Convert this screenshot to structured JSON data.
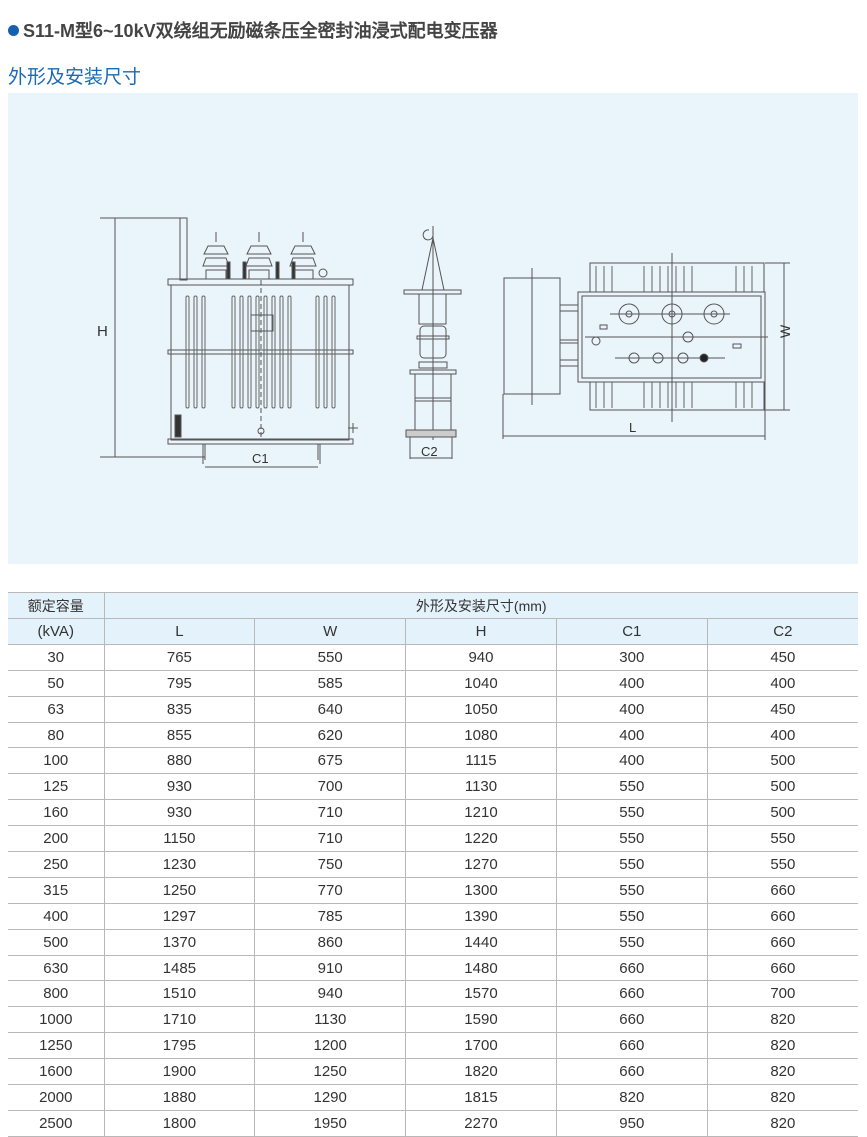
{
  "header": {
    "title": "S11-M型6~10kV双绕组无励磁条压全密封油浸式配电变压器",
    "bullet_color": "#1560b0",
    "section_title": "外形及安装尺寸",
    "section_color": "#1a6bb5"
  },
  "drawing": {
    "background": "#eaf4fb",
    "labels": {
      "H": "H",
      "C1": "C1",
      "C2": "C2",
      "L": "L",
      "W": "W"
    }
  },
  "table": {
    "capacity_header_line1": "额定容量",
    "capacity_header_line2": "(kVA)",
    "group_header": "外形及安装尺寸(mm)",
    "columns": [
      "L",
      "W",
      "H",
      "C1",
      "C2"
    ],
    "rows": [
      [
        "30",
        "765",
        "550",
        "940",
        "300",
        "450"
      ],
      [
        "50",
        "795",
        "585",
        "1040",
        "400",
        "400"
      ],
      [
        "63",
        "835",
        "640",
        "1050",
        "400",
        "450"
      ],
      [
        "80",
        "855",
        "620",
        "1080",
        "400",
        "400"
      ],
      [
        "100",
        "880",
        "675",
        "1115",
        "400",
        "500"
      ],
      [
        "125",
        "930",
        "700",
        "1130",
        "550",
        "500"
      ],
      [
        "160",
        "930",
        "710",
        "1210",
        "550",
        "500"
      ],
      [
        "200",
        "1150",
        "710",
        "1220",
        "550",
        "550"
      ],
      [
        "250",
        "1230",
        "750",
        "1270",
        "550",
        "550"
      ],
      [
        "315",
        "1250",
        "770",
        "1300",
        "550",
        "660"
      ],
      [
        "400",
        "1297",
        "785",
        "1390",
        "550",
        "660"
      ],
      [
        "500",
        "1370",
        "860",
        "1440",
        "550",
        "660"
      ],
      [
        "630",
        "1485",
        "910",
        "1480",
        "660",
        "660"
      ],
      [
        "800",
        "1510",
        "940",
        "1570",
        "660",
        "700"
      ],
      [
        "1000",
        "1710",
        "1130",
        "1590",
        "660",
        "820"
      ],
      [
        "1250",
        "1795",
        "1200",
        "1700",
        "660",
        "820"
      ],
      [
        "1600",
        "1900",
        "1250",
        "1820",
        "660",
        "820"
      ],
      [
        "2000",
        "1880",
        "1290",
        "1815",
        "820",
        "820"
      ],
      [
        "2500",
        "1800",
        "1950",
        "2270",
        "950",
        "820"
      ]
    ]
  }
}
